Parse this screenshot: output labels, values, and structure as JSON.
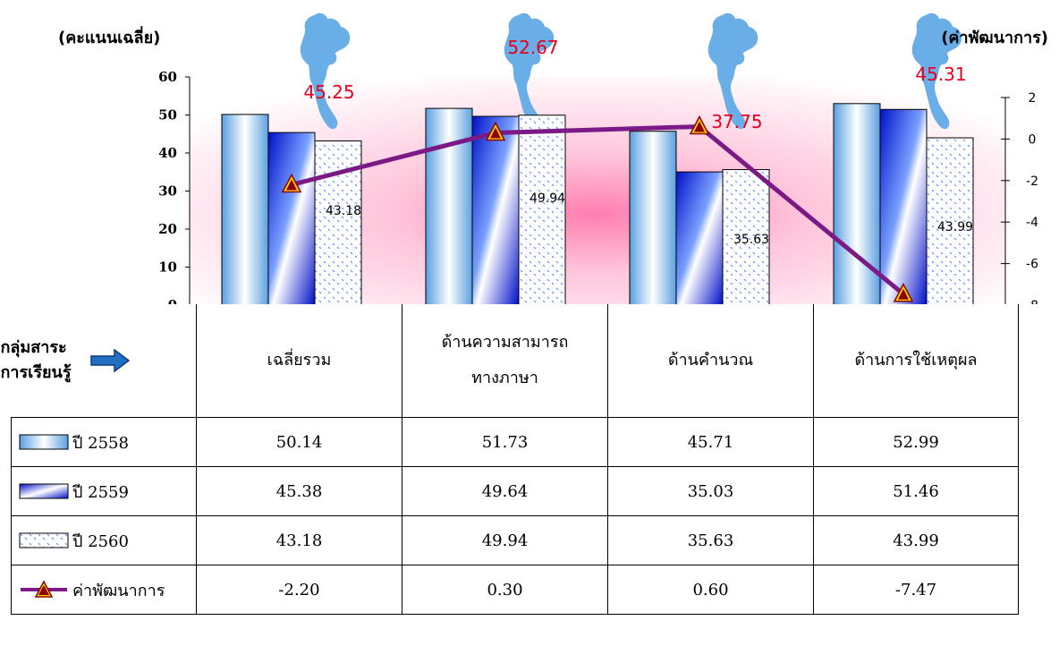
{
  "chart_data": {
    "type": "bar",
    "ylabel_left": "(คะแนนเฉลี่ย)",
    "ylabel_right": "(ค่าพัฒนาการ)",
    "ylim": [
      0,
      60
    ],
    "y2lim": [
      -8,
      2
    ],
    "yticks": [
      "0",
      "10",
      "20",
      "30",
      "40",
      "50",
      "60"
    ],
    "y2ticks": [
      "-8",
      "-6",
      "-4",
      "-2",
      "0",
      "2"
    ],
    "categories": [
      "เฉลี่ยรวม",
      "ด้านความสามารถทางภาษา",
      "ด้านคำนวณ",
      "ด้านการใช้เหตุผล"
    ],
    "category_lines": [
      [
        "เฉลี่ยรวม"
      ],
      [
        "ด้านความสามารถ",
        "ทางภาษา"
      ],
      [
        "ด้านคำนวณ"
      ],
      [
        "ด้านการใช้เหตุผล"
      ]
    ],
    "series": [
      {
        "name": "ปี 2558",
        "values": [
          50.14,
          51.73,
          45.71,
          52.99
        ],
        "display": [
          "50.14",
          "51.73",
          "45.71",
          "52.99"
        ]
      },
      {
        "name": "ปี 2559",
        "values": [
          45.38,
          49.64,
          35.03,
          51.46
        ],
        "display": [
          "45.38",
          "49.64",
          "35.03",
          "51.46"
        ]
      },
      {
        "name": "ปี 2560",
        "values": [
          43.18,
          49.94,
          35.63,
          43.99
        ],
        "display": [
          "43.18",
          "49.94",
          "35.63",
          "43.99"
        ]
      },
      {
        "name": "ค่าพัฒนาการ",
        "type": "line",
        "axis": "right",
        "values": [
          -2.2,
          0.3,
          0.6,
          -7.47
        ],
        "display": [
          "-2.20",
          "0.30",
          "0.60",
          "-7.47"
        ]
      }
    ],
    "bar_labels_2560": [
      "43.18",
      "49.94",
      "35.63",
      "43.99"
    ],
    "map_labels": [
      "45.25",
      "52.67",
      "37.75",
      "45.31"
    ],
    "colors": {
      "line": "#7b1a86",
      "marker": "#8b0000",
      "marker_fill": "#ffd700",
      "map": "#6aaee8",
      "map_label": "#e8001c"
    }
  },
  "table": {
    "corner_label_line1": "กลุ่มสาระ",
    "corner_label_line2": "การเรียนรู้"
  }
}
